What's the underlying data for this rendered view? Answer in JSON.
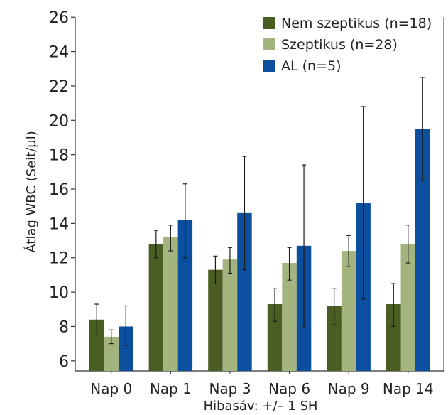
{
  "chart_data": {
    "type": "bar",
    "title": "",
    "ylabel": "Átlag WBC  (Seit/µl)",
    "xlabel": "",
    "note": "Hibasáv: +/– 1 SH",
    "categories": [
      "Nap 0",
      "Nap 1",
      "Nap 3",
      "Nap 6",
      "Nap 9",
      "Nap 14"
    ],
    "ylim": [
      5,
      26
    ],
    "yticks": [
      6,
      8,
      10,
      12,
      14,
      16,
      18,
      20,
      22,
      24,
      26
    ],
    "legend_position": "top-right",
    "grid": false,
    "series": [
      {
        "name": "Nem szeptikus (n=18)",
        "color": "#4a5e23",
        "values": [
          8.4,
          12.8,
          11.3,
          9.3,
          9.2,
          9.3
        ],
        "err_low": [
          7.5,
          12.0,
          10.5,
          8.3,
          8.1,
          8.0
        ],
        "err_high": [
          9.3,
          13.6,
          12.1,
          10.2,
          10.2,
          10.5
        ]
      },
      {
        "name": "Szeptikus (n=28)",
        "color": "#a4b47e",
        "values": [
          7.4,
          13.2,
          11.9,
          11.7,
          12.4,
          12.8
        ],
        "err_low": [
          7.0,
          12.4,
          11.1,
          10.7,
          11.5,
          11.7
        ],
        "err_high": [
          7.8,
          13.9,
          12.6,
          12.6,
          13.3,
          13.9
        ]
      },
      {
        "name": "AL (n=5)",
        "color": "#0b4f9e",
        "values": [
          8.0,
          14.2,
          14.6,
          12.7,
          15.2,
          19.5
        ],
        "err_low": [
          6.9,
          12.0,
          11.3,
          8.0,
          9.6,
          16.5
        ],
        "err_high": [
          9.2,
          16.3,
          17.9,
          17.4,
          20.8,
          22.5
        ]
      }
    ]
  }
}
